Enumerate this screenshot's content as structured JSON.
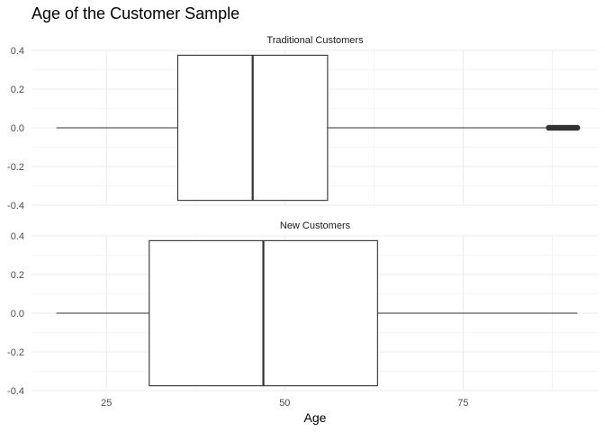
{
  "chart_data": {
    "type": "boxplot",
    "title": "Age of the Customer Sample",
    "xlabel": "Age",
    "ylabel": "",
    "xlim": [
      14.5,
      94
    ],
    "ylim": [
      -0.4,
      0.4
    ],
    "x_ticks": [
      25,
      50,
      75
    ],
    "y_ticks": [
      0.4,
      0.2,
      0.0,
      -0.2,
      -0.4
    ],
    "y_tick_labels": [
      "0.4",
      "0.2",
      "0.0",
      "-0.2",
      "-0.4"
    ],
    "box_half_height": 0.375,
    "grid": true,
    "panels": [
      {
        "label": "Traditional Customers",
        "whisker_low": 18,
        "q1": 35,
        "median": 45.5,
        "q3": 56,
        "whisker_high": 87,
        "outliers_range": [
          87,
          91
        ]
      },
      {
        "label": "New Customers",
        "whisker_low": 18,
        "q1": 31,
        "median": 47,
        "q3": 63,
        "whisker_high": 91,
        "outliers_range": []
      }
    ]
  }
}
